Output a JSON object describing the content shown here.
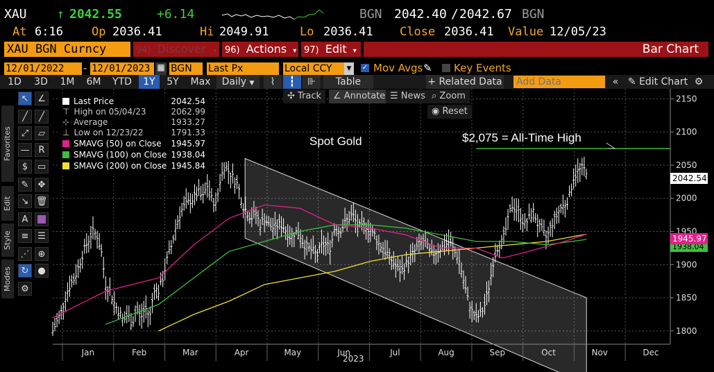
{
  "header": {
    "ticker": "XAU",
    "arrow": "↑",
    "last": "2042.55",
    "change": "+6.14",
    "bid_src": "BGN",
    "bid": "2042.40",
    "slash": "/",
    "ask": "2042.67",
    "ask_src": "BGN",
    "at_label": "At",
    "at_time": "6:16",
    "op_label": "Op",
    "op": "2036.41",
    "hi_label": "Hi",
    "hi": "2049.91",
    "lo_label": "Lo",
    "lo": "2036.41",
    "close_label": "Close",
    "close": "2036.41",
    "value_label": "Value",
    "value_date": "12/05/23"
  },
  "toolbar": {
    "security": "XAU BGN Curncy",
    "discover_num": "94)",
    "discover": "Discover",
    "actions_num": "96)",
    "actions": "Actions",
    "edit_num": "97)",
    "edit": "Edit",
    "chart_type": "Bar Chart"
  },
  "settings": {
    "start_date": "12/01/2022",
    "end_date": "12/01/2023",
    "source": "BGN",
    "field": "Last Px",
    "currency": "Local CCY",
    "mov_avgs": "Mov Avgs",
    "key_events": "Key Events"
  },
  "periods": [
    "1D",
    "3D",
    "1M",
    "6M",
    "YTD",
    "1Y",
    "5Y",
    "Max"
  ],
  "period_selected": "1Y",
  "frequency": "Daily",
  "table_label": "Table",
  "related_data": "+ Related Data",
  "add_data_placeholder": "Add Data",
  "edit_chart": "Edit Chart",
  "chart_tools": {
    "track": "Track",
    "annotate": "Annotate",
    "news": "News",
    "zoom": "Zoom",
    "reset": "Reset"
  },
  "side_tabs": [
    "Favorites",
    "Edit",
    "Style",
    "Modes"
  ],
  "legend": [
    {
      "label": "Last Price",
      "value": "2042.54",
      "color": "#ffffff"
    },
    {
      "label": "High on 05/04/23",
      "value": "2062.99",
      "color": ""
    },
    {
      "label": "Average",
      "value": "1933.27",
      "color": ""
    },
    {
      "label": "Low on 12/23/22",
      "value": "1791.33",
      "color": ""
    },
    {
      "label": "SMAVG (50)  on Close",
      "value": "1945.97",
      "color": "#e0218a"
    },
    {
      "label": "SMAVG (100)  on Close",
      "value": "1938.04",
      "color": "#3cc13c"
    },
    {
      "label": "SMAVG (200)  on Close",
      "value": "1945.84",
      "color": "#f0e030"
    }
  ],
  "annotations": {
    "spot_gold": "Spot Gold",
    "ath": "$2,075 = All-Time High"
  },
  "badges": {
    "last": "2042.54",
    "smavg": "1945.97",
    "smavg_hidden": "1938.04"
  },
  "colors": {
    "amber": "#f5a623",
    "bloomberg_orange": "#f39c12",
    "bloomberg_red": "#9b1316",
    "sma50": "#e0218a",
    "sma100": "#3cc13c",
    "sma200": "#f0e030",
    "ath_line": "#3cd13c"
  },
  "chart_data": {
    "type": "bar",
    "x_label": "2023",
    "months": [
      "Jan",
      "Feb",
      "Mar",
      "Apr",
      "May",
      "Jun",
      "Jul",
      "Aug",
      "Sep",
      "Oct",
      "Nov",
      "Dec"
    ],
    "y_ticks": [
      1800,
      1850,
      1900,
      1950,
      2000,
      2050,
      2100,
      2150
    ],
    "ylim": [
      1780,
      2165
    ],
    "ath_level": 2075,
    "grid": true,
    "price_series": [
      [
        0,
        1800
      ],
      [
        5,
        1815
      ],
      [
        10,
        1830
      ],
      [
        15,
        1855
      ],
      [
        20,
        1870
      ],
      [
        25,
        1880
      ],
      [
        30,
        1900
      ],
      [
        35,
        1920
      ],
      [
        40,
        1935
      ],
      [
        45,
        1950
      ],
      [
        50,
        1945
      ],
      [
        55,
        1920
      ],
      [
        60,
        1870
      ],
      [
        65,
        1860
      ],
      [
        70,
        1840
      ],
      [
        75,
        1830
      ],
      [
        80,
        1815
      ],
      [
        85,
        1825
      ],
      [
        90,
        1810
      ],
      [
        95,
        1835
      ],
      [
        100,
        1820
      ],
      [
        105,
        1835
      ],
      [
        110,
        1820
      ],
      [
        115,
        1865
      ],
      [
        120,
        1860
      ],
      [
        125,
        1880
      ],
      [
        130,
        1910
      ],
      [
        135,
        1930
      ],
      [
        140,
        1960
      ],
      [
        145,
        1980
      ],
      [
        150,
        1990
      ],
      [
        155,
        1995
      ],
      [
        160,
        2000
      ],
      [
        165,
        2010
      ],
      [
        170,
        2000
      ],
      [
        175,
        2020
      ],
      [
        180,
        2000
      ],
      [
        185,
        1990
      ],
      [
        190,
        2030
      ],
      [
        195,
        2050
      ],
      [
        200,
        2040
      ],
      [
        205,
        2030
      ],
      [
        210,
        2020
      ],
      [
        215,
        1990
      ],
      [
        220,
        1980
      ],
      [
        225,
        1970
      ],
      [
        230,
        1980
      ],
      [
        235,
        1960
      ],
      [
        240,
        1970
      ],
      [
        245,
        1960
      ],
      [
        250,
        1955
      ],
      [
        255,
        1960
      ],
      [
        260,
        1960
      ],
      [
        265,
        1950
      ],
      [
        270,
        1940
      ],
      [
        275,
        1950
      ],
      [
        280,
        1945
      ],
      [
        285,
        1930
      ],
      [
        290,
        1925
      ],
      [
        295,
        1920
      ],
      [
        300,
        1915
      ],
      [
        305,
        1930
      ],
      [
        310,
        1930
      ],
      [
        315,
        1925
      ],
      [
        320,
        1960
      ],
      [
        325,
        1950
      ],
      [
        330,
        1960
      ],
      [
        335,
        1970
      ],
      [
        340,
        1975
      ],
      [
        345,
        1960
      ],
      [
        350,
        1955
      ],
      [
        355,
        1960
      ],
      [
        360,
        1950
      ],
      [
        365,
        1945
      ],
      [
        370,
        1930
      ],
      [
        375,
        1925
      ],
      [
        380,
        1915
      ],
      [
        385,
        1905
      ],
      [
        390,
        1895
      ],
      [
        395,
        1890
      ],
      [
        400,
        1900
      ],
      [
        405,
        1910
      ],
      [
        410,
        1920
      ],
      [
        415,
        1930
      ],
      [
        420,
        1935
      ],
      [
        425,
        1925
      ],
      [
        430,
        1915
      ],
      [
        435,
        1920
      ],
      [
        440,
        1925
      ],
      [
        445,
        1930
      ],
      [
        450,
        1935
      ],
      [
        455,
        1920
      ],
      [
        460,
        1910
      ],
      [
        465,
        1880
      ],
      [
        470,
        1850
      ],
      [
        475,
        1830
      ],
      [
        480,
        1820
      ],
      [
        485,
        1825
      ],
      [
        490,
        1840
      ],
      [
        495,
        1870
      ],
      [
        500,
        1910
      ],
      [
        505,
        1930
      ],
      [
        510,
        1935
      ],
      [
        515,
        1960
      ],
      [
        520,
        1990
      ],
      [
        525,
        1985
      ],
      [
        530,
        1975
      ],
      [
        535,
        1960
      ],
      [
        540,
        1970
      ],
      [
        545,
        1980
      ],
      [
        550,
        1960
      ],
      [
        555,
        1950
      ],
      [
        560,
        1940
      ],
      [
        565,
        1960
      ],
      [
        570,
        1970
      ],
      [
        575,
        1985
      ],
      [
        580,
        1990
      ],
      [
        585,
        2000
      ],
      [
        590,
        2030
      ],
      [
        595,
        2040
      ],
      [
        600,
        2045
      ],
      [
        605,
        2042
      ]
    ],
    "sma50": [
      [
        0,
        1820
      ],
      [
        60,
        1860
      ],
      [
        120,
        1880
      ],
      [
        160,
        1930
      ],
      [
        200,
        1970
      ],
      [
        240,
        1990
      ],
      [
        280,
        1985
      ],
      [
        320,
        1960
      ],
      [
        360,
        1955
      ],
      [
        400,
        1945
      ],
      [
        440,
        1925
      ],
      [
        480,
        1925
      ],
      [
        510,
        1910
      ],
      [
        540,
        1920
      ],
      [
        580,
        1935
      ],
      [
        605,
        1946
      ]
    ],
    "sma100": [
      [
        60,
        1810
      ],
      [
        120,
        1840
      ],
      [
        160,
        1880
      ],
      [
        200,
        1920
      ],
      [
        240,
        1935
      ],
      [
        280,
        1950
      ],
      [
        320,
        1960
      ],
      [
        360,
        1960
      ],
      [
        400,
        1955
      ],
      [
        440,
        1945
      ],
      [
        480,
        1935
      ],
      [
        520,
        1935
      ],
      [
        560,
        1930
      ],
      [
        605,
        1938
      ]
    ],
    "sma200": [
      [
        120,
        1800
      ],
      [
        160,
        1825
      ],
      [
        200,
        1845
      ],
      [
        240,
        1870
      ],
      [
        280,
        1880
      ],
      [
        320,
        1890
      ],
      [
        360,
        1905
      ],
      [
        400,
        1915
      ],
      [
        440,
        1920
      ],
      [
        480,
        1925
      ],
      [
        520,
        1930
      ],
      [
        560,
        1935
      ],
      [
        605,
        1946
      ]
    ],
    "channel_upper": [
      [
        218,
        2060
      ],
      [
        605,
        1850
      ]
    ],
    "channel_lower": [
      [
        218,
        1940
      ],
      [
        605,
        1720
      ]
    ]
  }
}
